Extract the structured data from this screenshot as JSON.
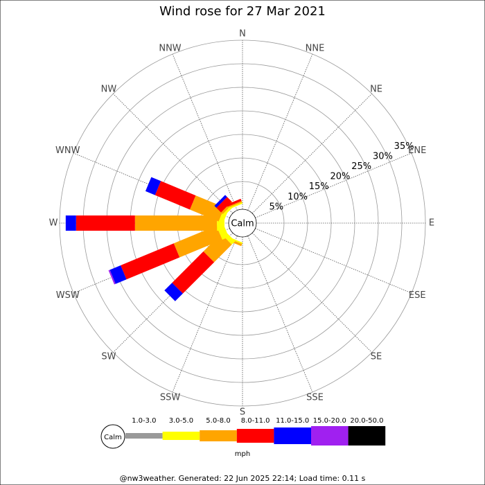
{
  "chart_data": {
    "type": "windrose",
    "title": "Wind rose for 27 Mar 2021",
    "categories": [
      "N",
      "NNE",
      "NE",
      "ENE",
      "E",
      "ESE",
      "SE",
      "SSE",
      "S",
      "SSW",
      "SW",
      "WSW",
      "W",
      "WNW",
      "NW",
      "NNW"
    ],
    "center_label": "Calm",
    "rlim": [
      0,
      35
    ],
    "rticks": [
      {
        "value": 5,
        "label": "5%"
      },
      {
        "value": 10,
        "label": "10%"
      },
      {
        "value": 15,
        "label": "15%"
      },
      {
        "value": 20,
        "label": "20%"
      },
      {
        "value": 25,
        "label": "25%"
      },
      {
        "value": 30,
        "label": "30%"
      },
      {
        "value": 35,
        "label": "35%"
      }
    ],
    "legend_calm": "Calm",
    "units": "mph",
    "series": [
      {
        "name": "1.0-3.0",
        "color": "#999999",
        "values": [
          0,
          0,
          0,
          0,
          0,
          0,
          0,
          0,
          0,
          0,
          0,
          0,
          0,
          0,
          0,
          0
        ]
      },
      {
        "name": "3.0-5.0",
        "color": "#ffff00",
        "values": [
          0,
          0,
          0,
          0,
          0,
          0,
          0,
          0,
          0,
          0.3,
          1.0,
          1.5,
          1.6,
          1.0,
          0.5,
          0.3
        ]
      },
      {
        "name": "5.0-8.0",
        "color": "#ffa500",
        "values": [
          0,
          0,
          0,
          0,
          0,
          0,
          0,
          0,
          0,
          0.5,
          5.3,
          9.8,
          17.4,
          6.6,
          0.5,
          0.3
        ]
      },
      {
        "name": "8.0-11.0",
        "color": "#ff0000",
        "values": [
          0,
          0,
          0,
          0,
          0,
          0,
          0,
          0,
          0,
          0,
          9.4,
          12.2,
          12.5,
          8.0,
          1.4,
          0.5
        ]
      },
      {
        "name": "11.0-15.0",
        "color": "#0000ff",
        "values": [
          0,
          0,
          0,
          0,
          0,
          0,
          0,
          0,
          0,
          0,
          2.3,
          2.5,
          2.2,
          2.2,
          0.6,
          0
        ]
      },
      {
        "name": "15.0-20.0",
        "color": "#a020f0",
        "values": [
          0,
          0,
          0,
          0,
          0,
          0,
          0,
          0,
          0,
          0,
          0,
          0.3,
          0,
          0,
          0,
          0
        ]
      },
      {
        "name": "20.0-50.0",
        "color": "#000000",
        "values": [
          0,
          0,
          0,
          0,
          0,
          0,
          0,
          0,
          0,
          0,
          0,
          0,
          0,
          0,
          0,
          0
        ]
      }
    ],
    "footer": "@nw3weather. Generated: 22 Jun 2025 22:14; Load time: 0.11 s"
  }
}
